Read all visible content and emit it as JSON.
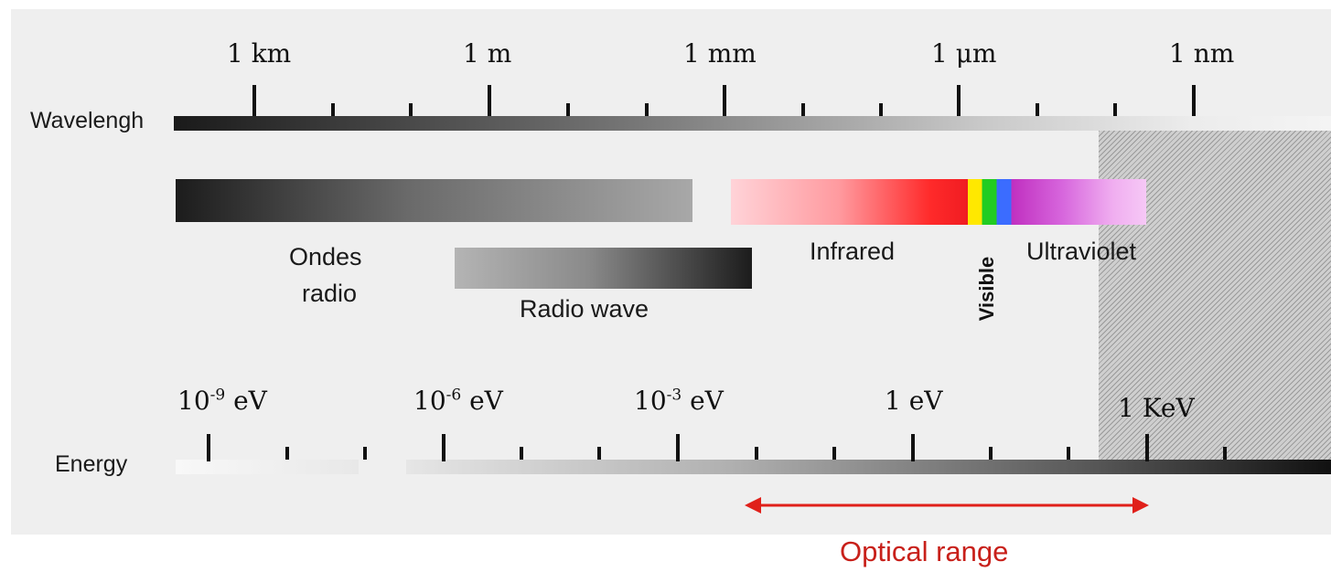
{
  "wavelength_axis": {
    "label": "Wavelengh",
    "tick_labels": [
      "1 km",
      "1 m",
      "1 mm",
      "1 μm",
      "1 nm"
    ]
  },
  "bands": {
    "radio_fr_line1": "Ondes",
    "radio_fr_line2": "radio",
    "radio_wave": "Radio wave",
    "infrared": "Infrared",
    "visible": "Visible",
    "ultraviolet": "Ultraviolet"
  },
  "energy_axis": {
    "label": "Energy",
    "tick_labels": [
      {
        "base": "10",
        "exp": "-9",
        "unit": " eV"
      },
      {
        "base": "10",
        "exp": "-6",
        "unit": " eV"
      },
      {
        "base": "10",
        "exp": "-3",
        "unit": " eV"
      },
      {
        "base": "1 eV",
        "exp": "",
        "unit": ""
      },
      {
        "base": "1 KeV",
        "exp": "",
        "unit": ""
      }
    ]
  },
  "optical_range": {
    "label": "Optical range",
    "color": "#e0201a"
  },
  "colors": {
    "panel_background": "#efefef",
    "tick": "#111111"
  }
}
